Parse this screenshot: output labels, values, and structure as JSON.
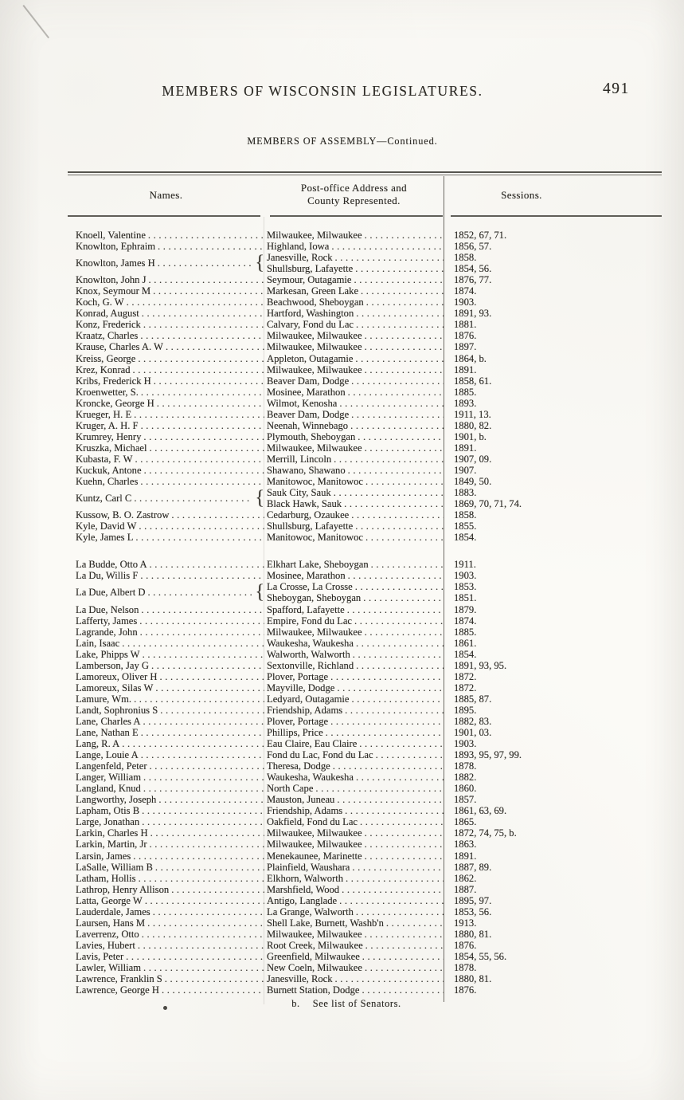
{
  "page": {
    "title": "MEMBERS OF WISCONSIN LEGISLATURES.",
    "page_number": "491",
    "subtitle": "MEMBERS OF ASSEMBLY—Continued.",
    "footnote_marker": "b.",
    "footnote_text": "See list of Senators."
  },
  "table": {
    "headers": {
      "names": "Names.",
      "address_line1": "Post-office Address and",
      "address_line2": "County Represented.",
      "sessions": "Sessions."
    },
    "groups": [
      {
        "rows": [
          {
            "name": "Knoell, Valentine",
            "entries": [
              {
                "address": "Milwaukee, Milwaukee",
                "sessions": "1852, 67, 71."
              }
            ]
          },
          {
            "name": "Knowlton, Ephraim",
            "entries": [
              {
                "address": "Highland, Iowa",
                "sessions": "1856, 57."
              }
            ]
          },
          {
            "name": "Knowlton, James H",
            "entries": [
              {
                "address": "Janesville, Rock",
                "sessions": "1858."
              },
              {
                "address": "Shullsburg, Lafayette",
                "sessions": "1854, 56."
              }
            ]
          },
          {
            "name": "Knowlton, John J",
            "entries": [
              {
                "address": "Seymour, Outagamie",
                "sessions": "1876, 77."
              }
            ]
          },
          {
            "name": "Knox, Seymour M",
            "entries": [
              {
                "address": "Markesan, Green Lake",
                "sessions": "1874."
              }
            ]
          },
          {
            "name": "Koch, G. W",
            "entries": [
              {
                "address": "Beachwood, Sheboygan",
                "sessions": "1903."
              }
            ]
          },
          {
            "name": "Konrad, August",
            "entries": [
              {
                "address": "Hartford, Washington",
                "sessions": "1891, 93."
              }
            ]
          },
          {
            "name": "Konz, Frederick",
            "entries": [
              {
                "address": "Calvary, Fond du Lac",
                "sessions": "1881."
              }
            ]
          },
          {
            "name": "Kraatz, Charles",
            "entries": [
              {
                "address": "Milwaukee, Milwaukee",
                "sessions": "1876."
              }
            ]
          },
          {
            "name": "Krause, Charles A. W",
            "entries": [
              {
                "address": "Milwaukee, Milwaukee",
                "sessions": "1897."
              }
            ]
          },
          {
            "name": "Kreiss, George",
            "entries": [
              {
                "address": "Appleton, Outagamie",
                "sessions": "1864, b."
              }
            ]
          },
          {
            "name": "Krez, Konrad",
            "entries": [
              {
                "address": "Milwaukee, Milwaukee",
                "sessions": "1891."
              }
            ]
          },
          {
            "name": "Kribs, Frederick H",
            "entries": [
              {
                "address": "Beaver Dam, Dodge",
                "sessions": "1858, 61."
              }
            ]
          },
          {
            "name": "Kroenwetter, S.",
            "entries": [
              {
                "address": "Mosinee, Marathon",
                "sessions": "1885."
              }
            ]
          },
          {
            "name": "Kroncke, George H",
            "entries": [
              {
                "address": "Wilmot, Kenosha",
                "sessions": "1893."
              }
            ]
          },
          {
            "name": "Krueger, H. E",
            "entries": [
              {
                "address": "Beaver Dam, Dodge",
                "sessions": "1911, 13."
              }
            ]
          },
          {
            "name": "Kruger, A. H. F",
            "entries": [
              {
                "address": "Neenah, Winnebago",
                "sessions": "1880, 82."
              }
            ]
          },
          {
            "name": "Krumrey, Henry",
            "entries": [
              {
                "address": "Plymouth, Sheboygan",
                "sessions": "1901, b."
              }
            ]
          },
          {
            "name": "Kruszka, Michael",
            "entries": [
              {
                "address": "Milwaukee, Milwaukee",
                "sessions": "1891."
              }
            ]
          },
          {
            "name": "Kubasta, F. W",
            "entries": [
              {
                "address": "Merrill, Lincoln",
                "sessions": "1907, 09."
              }
            ]
          },
          {
            "name": "Kuckuk, Antone",
            "entries": [
              {
                "address": "Shawano, Shawano",
                "sessions": "1907."
              }
            ]
          },
          {
            "name": "Kuehn, Charles",
            "entries": [
              {
                "address": "Manitowoc, Manitowoc",
                "sessions": "1849, 50."
              }
            ]
          },
          {
            "name": "Kuntz, Carl C",
            "entries": [
              {
                "address": "Sauk City, Sauk",
                "sessions": "1883."
              },
              {
                "address": "Black Hawk, Sauk",
                "sessions": "1869, 70, 71, 74."
              }
            ]
          },
          {
            "name": "Kussow, B. O. Zastrow",
            "entries": [
              {
                "address": "Cedarburg, Ozaukee",
                "sessions": "1858."
              }
            ]
          },
          {
            "name": "Kyle, David W",
            "entries": [
              {
                "address": "Shullsburg, Lafayette",
                "sessions": "1855."
              }
            ]
          },
          {
            "name": "Kyle, James L",
            "entries": [
              {
                "address": "Manitowoc, Manitowoc",
                "sessions": "1854."
              }
            ]
          }
        ]
      },
      {
        "rows": [
          {
            "name": "La Budde, Otto A",
            "entries": [
              {
                "address": "Elkhart Lake, Sheboygan",
                "sessions": "1911."
              }
            ]
          },
          {
            "name": "La Du, Willis F",
            "entries": [
              {
                "address": "Mosinee, Marathon",
                "sessions": "1903."
              }
            ]
          },
          {
            "name": "La Due, Albert D",
            "entries": [
              {
                "address": "La Crosse, La Crosse",
                "sessions": "1853."
              },
              {
                "address": "Sheboygan, Sheboygan",
                "sessions": "1851."
              }
            ]
          },
          {
            "name": "La Due, Nelson",
            "entries": [
              {
                "address": "Spafford, Lafayette",
                "sessions": "1879."
              }
            ]
          },
          {
            "name": "Lafferty, James",
            "entries": [
              {
                "address": "Empire, Fond du Lac",
                "sessions": "1874."
              }
            ]
          },
          {
            "name": "Lagrande, John",
            "entries": [
              {
                "address": "Milwaukee, Milwaukee",
                "sessions": "1885."
              }
            ]
          },
          {
            "name": "Lain, Isaac",
            "entries": [
              {
                "address": "Waukesha, Waukesha",
                "sessions": "1861."
              }
            ]
          },
          {
            "name": "Lake, Phipps W",
            "entries": [
              {
                "address": "Walworth, Walworth",
                "sessions": "1854."
              }
            ]
          },
          {
            "name": "Lamberson, Jay G",
            "entries": [
              {
                "address": "Sextonville, Richland",
                "sessions": "1891, 93, 95."
              }
            ]
          },
          {
            "name": "Lamoreux, Oliver H",
            "entries": [
              {
                "address": "Plover, Portage",
                "sessions": "1872."
              }
            ]
          },
          {
            "name": "Lamoreux, Silas W",
            "entries": [
              {
                "address": "Mayville, Dodge",
                "sessions": "1872."
              }
            ]
          },
          {
            "name": "Lamure, Wm.",
            "entries": [
              {
                "address": "Ledyard, Outagamie",
                "sessions": "1885, 87."
              }
            ]
          },
          {
            "name": "Landt, Sophronius S",
            "entries": [
              {
                "address": "Friendship, Adams",
                "sessions": "1895."
              }
            ]
          },
          {
            "name": "Lane, Charles A",
            "entries": [
              {
                "address": "Plover, Portage",
                "sessions": "1882, 83."
              }
            ]
          },
          {
            "name": "Lane, Nathan E",
            "entries": [
              {
                "address": "Phillips, Price",
                "sessions": "1901, 03."
              }
            ]
          },
          {
            "name": "Lang, R. A",
            "entries": [
              {
                "address": "Eau Claire, Eau Claire",
                "sessions": "1903."
              }
            ]
          },
          {
            "name": "Lange, Louie A",
            "entries": [
              {
                "address": "Fond du Lac, Fond du Lac",
                "sessions": "1893, 95, 97, 99."
              }
            ]
          },
          {
            "name": "Langenfeld, Peter",
            "entries": [
              {
                "address": "Theresa, Dodge",
                "sessions": "1878."
              }
            ]
          },
          {
            "name": "Langer, William",
            "entries": [
              {
                "address": "Waukesha, Waukesha",
                "sessions": "1882."
              }
            ]
          },
          {
            "name": "Langland, Knud",
            "entries": [
              {
                "address": "North Cape",
                "sessions": "1860."
              }
            ]
          },
          {
            "name": "Langworthy, Joseph",
            "entries": [
              {
                "address": "Mauston, Juneau",
                "sessions": "1857."
              }
            ]
          },
          {
            "name": "Lapham, Otis B",
            "entries": [
              {
                "address": "Friendship, Adams",
                "sessions": "1861, 63, 69."
              }
            ]
          },
          {
            "name": "Large, Jonathan",
            "entries": [
              {
                "address": "Oakfield, Fond du Lac",
                "sessions": "1865."
              }
            ]
          },
          {
            "name": "Larkin, Charles H",
            "entries": [
              {
                "address": "Milwaukee, Milwaukee",
                "sessions": "1872, 74, 75, b."
              }
            ]
          },
          {
            "name": "Larkin, Martin, Jr",
            "entries": [
              {
                "address": "Milwaukee, Milwaukee",
                "sessions": "1863."
              }
            ]
          },
          {
            "name": "Larsin, James",
            "entries": [
              {
                "address": "Menekaunee, Marinette",
                "sessions": "1891."
              }
            ]
          },
          {
            "name": "LaSalle, William B",
            "entries": [
              {
                "address": "Plainfield, Waushara",
                "sessions": "1887, 89."
              }
            ]
          },
          {
            "name": "Latham, Hollis",
            "entries": [
              {
                "address": "Elkhorn, Walworth",
                "sessions": "1862."
              }
            ]
          },
          {
            "name": "Lathrop, Henry Allison",
            "entries": [
              {
                "address": "Marshfield, Wood",
                "sessions": "1887."
              }
            ]
          },
          {
            "name": "Latta, George W",
            "entries": [
              {
                "address": "Antigo, Langlade",
                "sessions": "1895, 97."
              }
            ]
          },
          {
            "name": "Lauderdale, James",
            "entries": [
              {
                "address": "La Grange, Walworth",
                "sessions": "1853, 56."
              }
            ]
          },
          {
            "name": "Laursen, Hans M",
            "entries": [
              {
                "address": "Shell Lake, Burnett, Washb'n",
                "sessions": "1913."
              }
            ]
          },
          {
            "name": "Laverrenz, Otto",
            "entries": [
              {
                "address": "Milwaukee, Milwaukee",
                "sessions": "1880, 81."
              }
            ]
          },
          {
            "name": "Lavies, Hubert",
            "entries": [
              {
                "address": "Root Creek, Milwaukee",
                "sessions": "1876."
              }
            ]
          },
          {
            "name": "Lavis, Peter",
            "entries": [
              {
                "address": "Greenfield, Milwaukee",
                "sessions": "1854, 55, 56."
              }
            ]
          },
          {
            "name": "Lawler, William",
            "entries": [
              {
                "address": "New Coeln, Milwaukee",
                "sessions": "1878."
              }
            ]
          },
          {
            "name": "Lawrence, Franklin S",
            "entries": [
              {
                "address": "Janesville, Rock",
                "sessions": "1880, 81."
              }
            ]
          },
          {
            "name": "Lawrence, George H",
            "entries": [
              {
                "address": "Burnett Station, Dodge",
                "sessions": "1876."
              }
            ]
          }
        ]
      }
    ]
  }
}
